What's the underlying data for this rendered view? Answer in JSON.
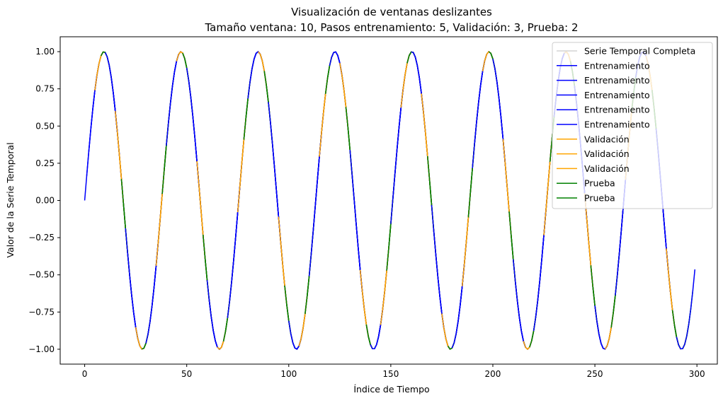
{
  "chart_data": {
    "type": "line",
    "title": "Visualización de ventanas deslizantes",
    "subtitle": "Tamaño ventana: 10, Pasos entrenamiento: 5, Validación: 3, Prueba: 2",
    "xlabel": "Índice de Tiempo",
    "ylabel": "Valor de la Serie Temporal",
    "xlim": [
      -12,
      310
    ],
    "ylim": [
      -1.1,
      1.1
    ],
    "xticks": [
      0,
      50,
      100,
      150,
      200,
      250,
      300
    ],
    "yticks": [
      -1.0,
      -0.75,
      -0.5,
      -0.25,
      0.0,
      0.25,
      0.5,
      0.75,
      1.0
    ],
    "xtick_labels": [
      "0",
      "50",
      "100",
      "150",
      "200",
      "250",
      "300"
    ],
    "ytick_labels": [
      "−1.00",
      "−0.75",
      "−0.50",
      "−0.25",
      "0.00",
      "0.25",
      "0.50",
      "0.75",
      "1.00"
    ],
    "grid": false,
    "legend_position": "top-right",
    "function": "y = sin(0.1665 * x)",
    "full_series": {
      "name": "Serie Temporal Completa",
      "x_range": [
        0,
        299
      ],
      "color": "#d3d3d3"
    },
    "window_pattern": {
      "window_size": 10,
      "cycle": [
        {
          "label": "Entrenamiento",
          "color": "#0000ff",
          "count": 5
        },
        {
          "label": "Validación",
          "color": "#ffa500",
          "count": 3
        },
        {
          "label": "Prueba",
          "color": "#008000",
          "count": 2
        }
      ]
    },
    "legend": [
      {
        "label": "Serie Temporal Completa",
        "color": "#d3d3d3"
      },
      {
        "label": "Entrenamiento",
        "color": "#0000ff"
      },
      {
        "label": "Entrenamiento",
        "color": "#0000ff"
      },
      {
        "label": "Entrenamiento",
        "color": "#0000ff"
      },
      {
        "label": "Entrenamiento",
        "color": "#0000ff"
      },
      {
        "label": "Entrenamiento",
        "color": "#0000ff"
      },
      {
        "label": "Validación",
        "color": "#ffa500"
      },
      {
        "label": "Validación",
        "color": "#ffa500"
      },
      {
        "label": "Validación",
        "color": "#ffa500"
      },
      {
        "label": "Prueba",
        "color": "#008000"
      },
      {
        "label": "Prueba",
        "color": "#008000"
      }
    ]
  }
}
